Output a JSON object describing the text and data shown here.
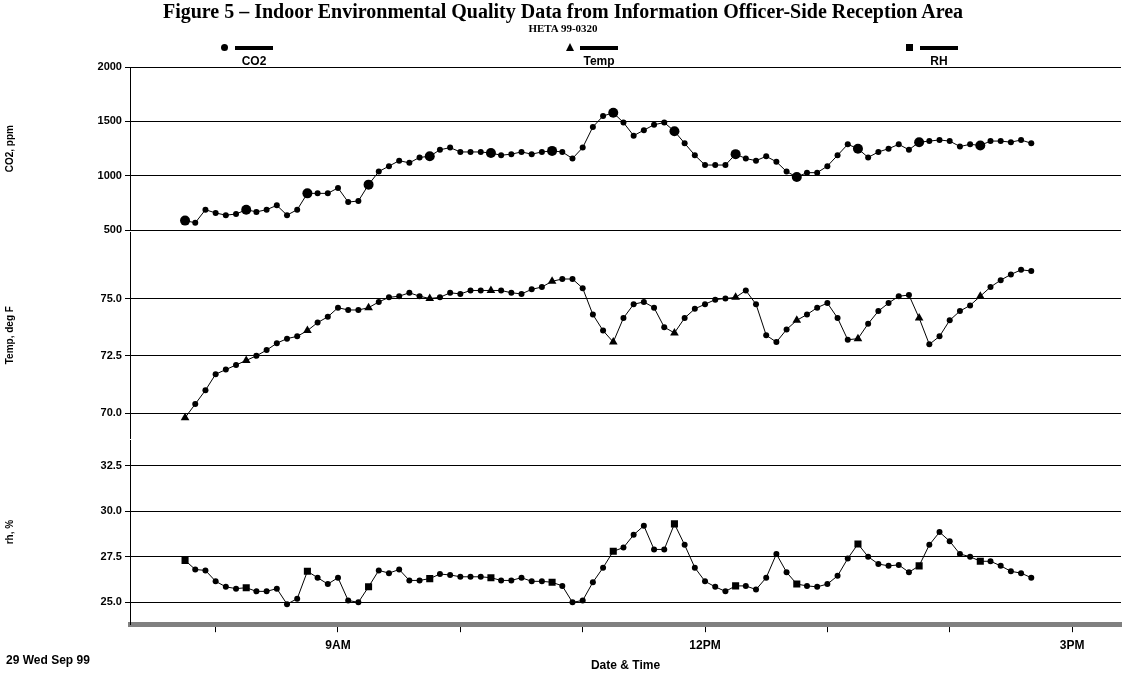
{
  "chart_data": [
    {
      "type": "line",
      "title": "Figure 5 – Indoor Environmental Quality Data from Information Officer-Side Reception Area",
      "subtitle": "HETA 99-0320",
      "ylabel": "CO2, ppm",
      "legend": "top",
      "grid": "y",
      "tick_labels": "y",
      "x": [
        "--09-29T07:45",
        "--09-29T07:50",
        "--09-29T07:55",
        "--09-29T08:00",
        "--09-29T08:05",
        "--09-29T08:10",
        "--09-29T08:15",
        "--09-29T08:20",
        "--09-29T08:25",
        "--09-29T08:30",
        "--09-29T08:35",
        "--09-29T08:40",
        "--09-29T08:45",
        "--09-29T08:50",
        "--09-29T08:55",
        "--09-29T09:00",
        "--09-29T09:05",
        "--09-29T09:10",
        "--09-29T09:15",
        "--09-29T09:20",
        "--09-29T09:25",
        "--09-29T09:30",
        "--09-29T09:35",
        "--09-29T09:40",
        "--09-29T09:45",
        "--09-29T09:50",
        "--09-29T09:55",
        "--09-29T10:00",
        "--09-29T10:05",
        "--09-29T10:10",
        "--09-29T10:15",
        "--09-29T10:20",
        "--09-29T10:25",
        "--09-29T10:30",
        "--09-29T10:35",
        "--09-29T10:40",
        "--09-29T10:45",
        "--09-29T10:50",
        "--09-29T10:55",
        "--09-29T11:00",
        "--09-29T11:05",
        "--09-29T11:10",
        "--09-29T11:15",
        "--09-29T11:20",
        "--09-29T11:25",
        "--09-29T11:30",
        "--09-29T11:35",
        "--09-29T11:40",
        "--09-29T11:45",
        "--09-29T11:50",
        "--09-29T11:55",
        "--09-29T12:00",
        "--09-29T12:05",
        "--09-29T12:10",
        "--09-29T12:15",
        "--09-29T12:20",
        "--09-29T12:25",
        "--09-29T12:30",
        "--09-29T12:35",
        "--09-29T12:40",
        "--09-29T12:45",
        "--09-29T12:50",
        "--09-29T12:55",
        "--09-29T13:00",
        "--09-29T13:05",
        "--09-29T13:10",
        "--09-29T13:15",
        "--09-29T13:20",
        "--09-29T13:25",
        "--09-29T13:30",
        "--09-29T13:35",
        "--09-29T13:40",
        "--09-29T13:45",
        "--09-29T13:50",
        "--09-29T13:55",
        "--09-29T14:00",
        "--09-29T14:05",
        "--09-29T14:10",
        "--09-29T14:15",
        "--09-29T14:20",
        "--09-29T14:25",
        "--09-29T14:30",
        "--09-29T14:35",
        "--09-29T14:40"
      ],
      "xlim": [
        "--09-29T07:18",
        "--09-29T15:24"
      ],
      "ylim": [
        500,
        2000
      ],
      "yticks": [
        500,
        1000,
        1500,
        2000
      ],
      "series": [
        {
          "name": "CO2",
          "color": "#000000",
          "marker": "circle",
          "values": [
            590,
            570,
            690,
            660,
            640,
            650,
            690,
            670,
            690,
            730,
            640,
            690,
            840,
            840,
            840,
            890,
            760,
            770,
            920,
            1040,
            1090,
            1140,
            1120,
            1170,
            1180,
            1240,
            1260,
            1220,
            1220,
            1220,
            1210,
            1190,
            1200,
            1220,
            1200,
            1220,
            1230,
            1220,
            1160,
            1260,
            1450,
            1550,
            1580,
            1490,
            1370,
            1420,
            1470,
            1490,
            1410,
            1300,
            1190,
            1100,
            1100,
            1100,
            1200,
            1160,
            1140,
            1180,
            1130,
            1040,
            990,
            1030,
            1030,
            1090,
            1190,
            1290,
            1250,
            1170,
            1220,
            1250,
            1290,
            1240,
            1310,
            1320,
            1330,
            1320,
            1270,
            1290,
            1280,
            1320,
            1320,
            1310,
            1330,
            1300
          ]
        }
      ]
    },
    {
      "type": "line",
      "ylabel": "Temp, deg F",
      "legend": "top",
      "grid": "y",
      "tick_labels": "y",
      "x": [
        "--09-29T07:45",
        "--09-29T07:50",
        "--09-29T07:55",
        "--09-29T08:00",
        "--09-29T08:05",
        "--09-29T08:10",
        "--09-29T08:15",
        "--09-29T08:20",
        "--09-29T08:25",
        "--09-29T08:30",
        "--09-29T08:35",
        "--09-29T08:40",
        "--09-29T08:45",
        "--09-29T08:50",
        "--09-29T08:55",
        "--09-29T09:00",
        "--09-29T09:05",
        "--09-29T09:10",
        "--09-29T09:15",
        "--09-29T09:20",
        "--09-29T09:25",
        "--09-29T09:30",
        "--09-29T09:35",
        "--09-29T09:40",
        "--09-29T09:45",
        "--09-29T09:50",
        "--09-29T09:55",
        "--09-29T10:00",
        "--09-29T10:05",
        "--09-29T10:10",
        "--09-29T10:15",
        "--09-29T10:20",
        "--09-29T10:25",
        "--09-29T10:30",
        "--09-29T10:35",
        "--09-29T10:40",
        "--09-29T10:45",
        "--09-29T10:50",
        "--09-29T10:55",
        "--09-29T11:00",
        "--09-29T11:05",
        "--09-29T11:10",
        "--09-29T11:15",
        "--09-29T11:20",
        "--09-29T11:25",
        "--09-29T11:30",
        "--09-29T11:35",
        "--09-29T11:40",
        "--09-29T11:45",
        "--09-29T11:50",
        "--09-29T11:55",
        "--09-29T12:00",
        "--09-29T12:05",
        "--09-29T12:10",
        "--09-29T12:15",
        "--09-29T12:20",
        "--09-29T12:25",
        "--09-29T12:30",
        "--09-29T12:35",
        "--09-29T12:40",
        "--09-29T12:45",
        "--09-29T12:50",
        "--09-29T12:55",
        "--09-29T13:00",
        "--09-29T13:05",
        "--09-29T13:10",
        "--09-29T13:15",
        "--09-29T13:20",
        "--09-29T13:25",
        "--09-29T13:30",
        "--09-29T13:35",
        "--09-29T13:40",
        "--09-29T13:45",
        "--09-29T13:50",
        "--09-29T13:55",
        "--09-29T14:00",
        "--09-29T14:05",
        "--09-29T14:10",
        "--09-29T14:15",
        "--09-29T14:20",
        "--09-29T14:25",
        "--09-29T14:30",
        "--09-29T14:35",
        "--09-29T14:40"
      ],
      "xlim": [
        "--09-29T07:18",
        "--09-29T15:24"
      ],
      "ylim": [
        68.9,
        77.9
      ],
      "yticks": [
        {
          "value": 70,
          "label": "70.0"
        },
        {
          "value": 72.5,
          "label": "72.5"
        },
        {
          "value": 75,
          "label": "75.0"
        }
      ],
      "series": [
        {
          "name": "Temp",
          "color": "#000000",
          "marker": "triangle",
          "values": [
            69.8,
            70.4,
            71.0,
            71.7,
            71.9,
            72.1,
            72.3,
            72.5,
            72.75,
            73.05,
            73.25,
            73.35,
            73.6,
            73.95,
            74.2,
            74.6,
            74.5,
            74.5,
            74.6,
            74.85,
            75.05,
            75.1,
            75.25,
            75.1,
            75.0,
            75.05,
            75.25,
            75.2,
            75.35,
            75.35,
            75.35,
            75.35,
            75.25,
            75.2,
            75.4,
            75.5,
            75.75,
            75.85,
            75.85,
            75.45,
            74.3,
            73.6,
            73.1,
            74.15,
            74.75,
            74.85,
            74.6,
            73.75,
            73.5,
            74.15,
            74.55,
            74.75,
            74.95,
            75.0,
            75.05,
            75.35,
            74.75,
            73.4,
            73.1,
            73.65,
            74.05,
            74.3,
            74.6,
            74.8,
            74.15,
            73.2,
            73.25,
            73.9,
            74.45,
            74.8,
            75.1,
            75.15,
            74.15,
            73.0,
            73.35,
            74.05,
            74.45,
            74.7,
            75.1,
            75.5,
            75.8,
            76.05,
            76.25,
            76.2
          ]
        }
      ]
    },
    {
      "type": "line",
      "ylabel": "rh, %",
      "xlabel": "Date & Time",
      "annotations": [
        "29 Wed Sep 99"
      ],
      "legend": "top",
      "grid": "y",
      "x": [
        "--09-29T07:45",
        "--09-29T07:50",
        "--09-29T07:55",
        "--09-29T08:00",
        "--09-29T08:05",
        "--09-29T08:10",
        "--09-29T08:15",
        "--09-29T08:20",
        "--09-29T08:25",
        "--09-29T08:30",
        "--09-29T08:35",
        "--09-29T08:40",
        "--09-29T08:45",
        "--09-29T08:50",
        "--09-29T08:55",
        "--09-29T09:00",
        "--09-29T09:05",
        "--09-29T09:10",
        "--09-29T09:15",
        "--09-29T09:20",
        "--09-29T09:25",
        "--09-29T09:30",
        "--09-29T09:35",
        "--09-29T09:40",
        "--09-29T09:45",
        "--09-29T09:50",
        "--09-29T09:55",
        "--09-29T10:00",
        "--09-29T10:05",
        "--09-29T10:10",
        "--09-29T10:15",
        "--09-29T10:20",
        "--09-29T10:25",
        "--09-29T10:30",
        "--09-29T10:35",
        "--09-29T10:40",
        "--09-29T10:45",
        "--09-29T10:50",
        "--09-29T10:55",
        "--09-29T11:00",
        "--09-29T11:05",
        "--09-29T11:10",
        "--09-29T11:15",
        "--09-29T11:20",
        "--09-29T11:25",
        "--09-29T11:30",
        "--09-29T11:35",
        "--09-29T11:40",
        "--09-29T11:45",
        "--09-29T11:50",
        "--09-29T11:55",
        "--09-29T12:00",
        "--09-29T12:05",
        "--09-29T12:10",
        "--09-29T12:15",
        "--09-29T12:20",
        "--09-29T12:25",
        "--09-29T12:30",
        "--09-29T12:35",
        "--09-29T12:40",
        "--09-29T12:45",
        "--09-29T12:50",
        "--09-29T12:55",
        "--09-29T13:00",
        "--09-29T13:05",
        "--09-29T13:10",
        "--09-29T13:15",
        "--09-29T13:20",
        "--09-29T13:25",
        "--09-29T13:30",
        "--09-29T13:35",
        "--09-29T13:40",
        "--09-29T13:45",
        "--09-29T13:50",
        "--09-29T13:55",
        "--09-29T14:00",
        "--09-29T14:05",
        "--09-29T14:10",
        "--09-29T14:15",
        "--09-29T14:20",
        "--09-29T14:25",
        "--09-29T14:30",
        "--09-29T14:35",
        "--09-29T14:40"
      ],
      "xlim": [
        "--09-29T07:18",
        "--09-29T15:24"
      ],
      "xticks": [
        {
          "value": "--09-29T08:00",
          "label": null
        },
        {
          "value": "--09-29T09:00",
          "label": "9AM"
        },
        {
          "value": "--09-29T10:00",
          "label": null
        },
        {
          "value": "--09-29T11:00",
          "label": null
        },
        {
          "value": "--09-29T12:00",
          "label": "12PM"
        },
        {
          "value": "--09-29T13:00",
          "label": null
        },
        {
          "value": "--09-29T14:00",
          "label": null
        },
        {
          "value": "--09-29T15:00",
          "label": "3PM"
        }
      ],
      "ylim": [
        23.8,
        33.9
      ],
      "yticks": [
        {
          "value": 25,
          "label": "25.0"
        },
        {
          "value": 27.5,
          "label": "27.5"
        },
        {
          "value": 30,
          "label": "30.0"
        },
        {
          "value": 32.5,
          "label": "32.5"
        }
      ],
      "series": [
        {
          "name": "RH",
          "color": "#000000",
          "marker": "square",
          "values": [
            27.3,
            26.8,
            26.75,
            26.15,
            25.85,
            25.75,
            25.8,
            25.6,
            25.6,
            25.75,
            24.9,
            25.2,
            26.7,
            26.35,
            26.0,
            26.35,
            25.1,
            25.0,
            25.85,
            26.75,
            26.6,
            26.8,
            26.2,
            26.2,
            26.3,
            26.55,
            26.5,
            26.4,
            26.4,
            26.4,
            26.35,
            26.2,
            26.2,
            26.35,
            26.15,
            26.15,
            26.1,
            25.9,
            25.0,
            25.1,
            26.1,
            26.9,
            27.8,
            28.0,
            28.7,
            29.2,
            27.9,
            27.9,
            29.3,
            28.15,
            26.9,
            26.15,
            25.85,
            25.6,
            25.9,
            25.9,
            25.7,
            26.35,
            27.65,
            26.65,
            26.0,
            25.9,
            25.85,
            26.0,
            26.45,
            27.4,
            28.2,
            27.5,
            27.1,
            27.0,
            27.05,
            26.65,
            27.0,
            28.15,
            28.85,
            28.35,
            27.65,
            27.5,
            27.25,
            27.25,
            27.0,
            26.7,
            26.6,
            26.35
          ]
        }
      ]
    }
  ]
}
